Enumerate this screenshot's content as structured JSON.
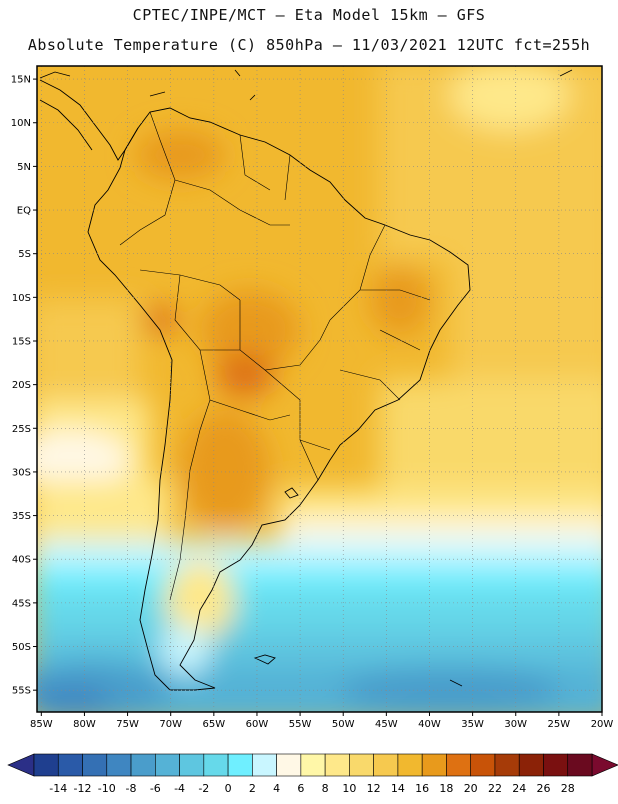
{
  "header": {
    "line1": "CPTEC/INPE/MCT –  Eta Model 15km – GFS",
    "line2": "Absolute Temperature (C) 850hPa – 11/03/2021 12UTC fct=255h"
  },
  "map": {
    "lat_labels": [
      "15N",
      "10N",
      "5N",
      "EQ",
      "5S",
      "10S",
      "15S",
      "20S",
      "25S",
      "30S",
      "35S",
      "40S",
      "45S",
      "50S",
      "55S"
    ],
    "lat_values": [
      15,
      10,
      5,
      0,
      -5,
      -10,
      -15,
      -20,
      -25,
      -30,
      -35,
      -40,
      -45,
      -50,
      -55
    ],
    "lon_labels": [
      "85W",
      "80W",
      "75W",
      "70W",
      "65W",
      "60W",
      "55W",
      "50W",
      "45W",
      "40W",
      "35W",
      "30W",
      "25W",
      "20W"
    ],
    "lon_values": [
      -85,
      -80,
      -75,
      -70,
      -65,
      -60,
      -55,
      -50,
      -45,
      -40,
      -35,
      -30,
      -25,
      -20
    ],
    "lon_range": [
      -85.5,
      -20
    ],
    "lat_range": [
      -57.5,
      16.5
    ]
  },
  "colorbar": {
    "labels": [
      "-14",
      "-12",
      "-10",
      "-8",
      "-6",
      "-4",
      "-2",
      "0",
      "2",
      "4",
      "6",
      "8",
      "10",
      "12",
      "14",
      "16",
      "18",
      "20",
      "22",
      "24",
      "26",
      "28"
    ],
    "colors": [
      "#1f3f8f",
      "#2a5aa8",
      "#3470b4",
      "#3f86c1",
      "#4a9dcb",
      "#55b2d6",
      "#5ec6e0",
      "#66d9ea",
      "#6fefff",
      "#c9f6ff",
      "#fff8e6",
      "#fff7a8",
      "#fee88a",
      "#f9d96b",
      "#f6c94f",
      "#f1b82f",
      "#e89a1c",
      "#de7112",
      "#c85308",
      "#a63b08",
      "#8b2207",
      "#7a1010",
      "#6a0a1f"
    ],
    "under_color": "#2b2f87",
    "over_color": "#7a0a2e"
  }
}
